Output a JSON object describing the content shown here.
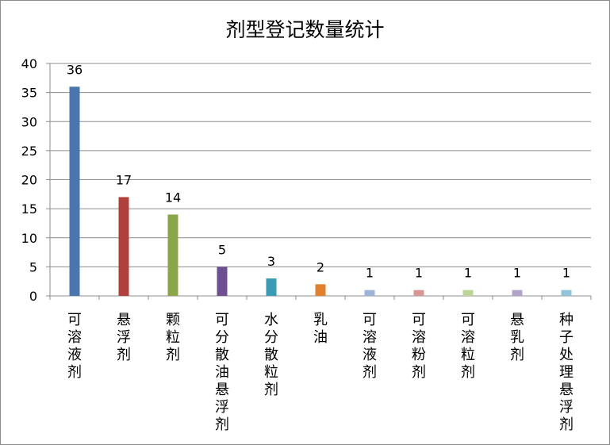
{
  "chart_data": {
    "type": "bar",
    "title": "剂型登记数量统计",
    "categories": [
      "可溶液剂",
      "悬浮剂",
      "颗粒剂",
      "可分散油悬浮剂",
      "水分散粒剂",
      "乳油",
      "可溶液剂",
      "可溶粉剂",
      "可溶粒剂",
      "悬乳剂",
      "种子处理悬浮剂"
    ],
    "values": [
      36,
      17,
      14,
      5,
      3,
      2,
      1,
      1,
      1,
      1,
      1
    ],
    "colors": [
      "#4a76ad",
      "#b0403c",
      "#8ba549",
      "#6e4f92",
      "#3a9bb5",
      "#e0812f",
      "#9db3d8",
      "#d99593",
      "#bfd49a",
      "#b2a3c8",
      "#92c4d8"
    ],
    "ylim": [
      0,
      40
    ],
    "yticks": [
      0,
      5,
      10,
      15,
      20,
      25,
      30,
      35,
      40
    ],
    "grid": true,
    "legend": "none"
  }
}
